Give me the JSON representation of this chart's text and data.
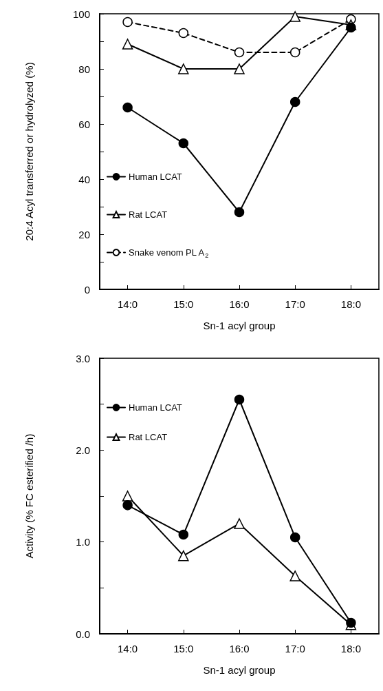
{
  "chart_data": [
    {
      "type": "line",
      "xlabel": "Sn-1 acyl group",
      "ylabel": "20:4 Acyl transferred or hydrolyzed (%)",
      "categories": [
        "14:0",
        "15:0",
        "16:0",
        "17:0",
        "18:0"
      ],
      "series": [
        {
          "name": "Human LCAT",
          "color": "#000000",
          "marker": "circle",
          "line_style": "solid",
          "values": [
            66,
            53,
            28,
            68,
            95
          ]
        },
        {
          "name": "Rat LCAT",
          "color": "#000000",
          "marker": "triangle",
          "line_style": "solid",
          "values": [
            89,
            80,
            80,
            99,
            96
          ]
        },
        {
          "name": "Snake venom PL A$_{2}$",
          "color": "#000000",
          "marker": "circle",
          "line_style": "dashed",
          "values": [
            97,
            93,
            86,
            86,
            98
          ]
        }
      ],
      "ylim": [
        0,
        100
      ],
      "yticks": [
        0,
        {
          "value": 10,
          "label": null
        },
        20,
        {
          "value": 30,
          "label": null
        },
        40,
        {
          "value": 50,
          "label": null
        },
        60,
        {
          "value": 70,
          "label": null
        },
        80,
        {
          "value": 90,
          "label": null
        },
        100
      ],
      "grid": false,
      "legend": "bottom left"
    },
    {
      "type": "line",
      "xlabel": "Sn-1 acyl group",
      "ylabel": "Activity (% FC esterified /h)",
      "categories": [
        "14:0",
        "15:0",
        "16:0",
        "17:0",
        "18:0"
      ],
      "series": [
        {
          "name": "Human LCAT",
          "color": "#000000",
          "marker": "circle",
          "line_style": "solid",
          "values": [
            1.4,
            1.08,
            2.55,
            1.05,
            0.12
          ]
        },
        {
          "name": "Rat LCAT",
          "color": "#000000",
          "marker": "triangle",
          "line_style": "solid",
          "values": [
            1.5,
            0.85,
            1.2,
            0.63,
            0.1
          ]
        }
      ],
      "ylim": [
        0,
        3
      ],
      "yticks": [
        {
          "value": 0,
          "label": "0.0"
        },
        {
          "value": 0.5,
          "label": null
        },
        {
          "value": 1,
          "label": "1.0"
        },
        {
          "value": 1.5,
          "label": null
        },
        {
          "value": 2,
          "label": "2.0"
        },
        {
          "value": 2.5,
          "label": null
        },
        {
          "value": 3,
          "label": "3.0"
        }
      ],
      "grid": false,
      "legend": "top left"
    }
  ]
}
